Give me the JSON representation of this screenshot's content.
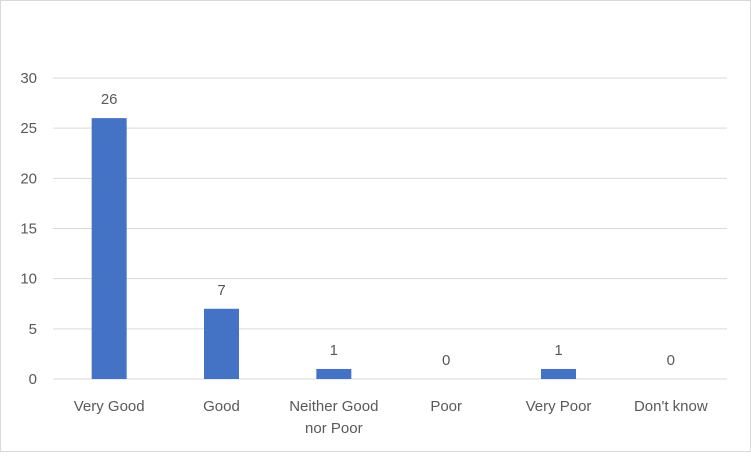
{
  "chart_data": {
    "type": "bar",
    "categories": [
      "Very Good",
      "Good",
      "Neither Good nor Poor",
      "Poor",
      "Very Poor",
      "Don't know"
    ],
    "category_lines": [
      [
        "Very Good"
      ],
      [
        "Good"
      ],
      [
        "Neither Good",
        "nor Poor"
      ],
      [
        "Poor"
      ],
      [
        "Very Poor"
      ],
      [
        "Don't know"
      ]
    ],
    "values": [
      26,
      7,
      1,
      0,
      1,
      0
    ],
    "y_ticks": [
      0,
      5,
      10,
      15,
      20,
      25,
      30
    ],
    "ylim": [
      0,
      30
    ],
    "title": "",
    "xlabel": "",
    "ylabel": "",
    "grid": true,
    "data_labels": true,
    "bar_color": "#4472c4",
    "grid_color": "#d9d9d9",
    "text_color": "#595959"
  }
}
